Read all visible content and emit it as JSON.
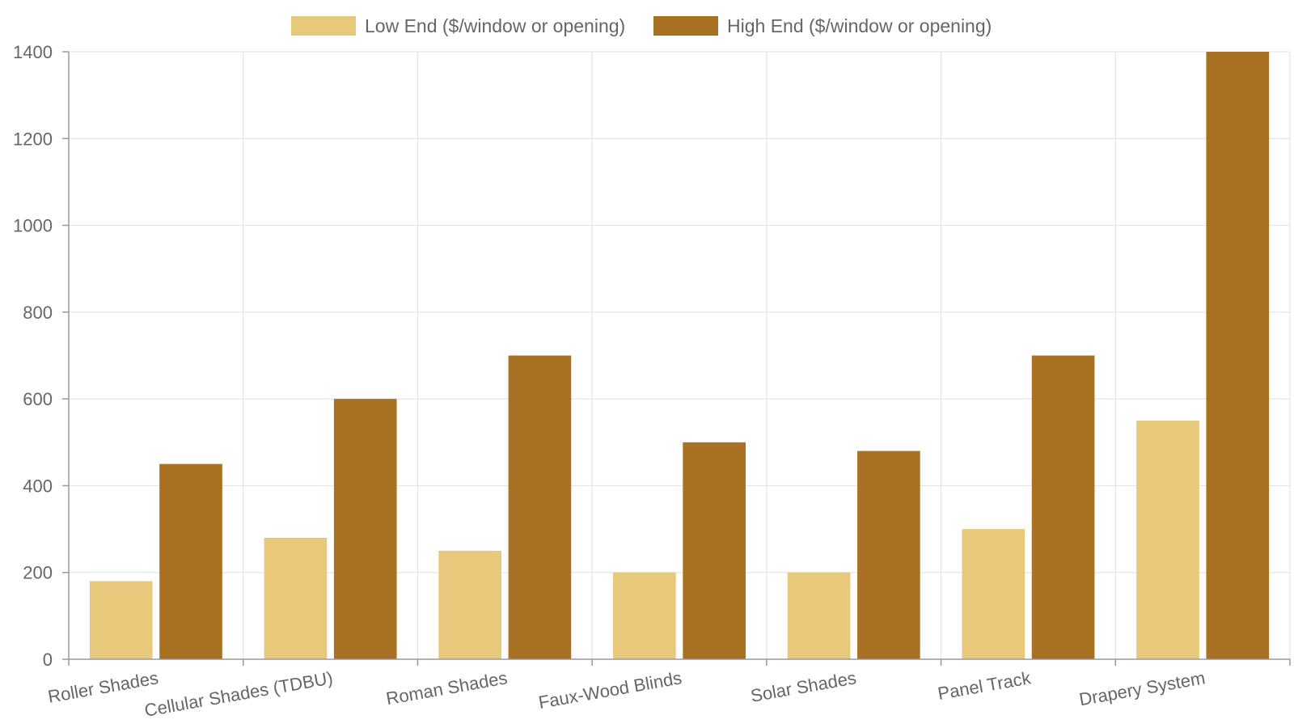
{
  "colors": {
    "low": "#E8C87A",
    "high": "#A97122",
    "grid": "#e0e0e0",
    "axis": "#9a9a9a",
    "text": "#666666"
  },
  "chart_data": {
    "type": "bar",
    "categories": [
      "Roller Shades",
      "Cellular Shades (TDBU)",
      "Roman Shades",
      "Faux-Wood Blinds",
      "Solar Shades",
      "Panel Track",
      "Drapery System"
    ],
    "series": [
      {
        "name": "Low End ($/window or opening)",
        "values": [
          180,
          280,
          250,
          200,
          200,
          300,
          550
        ]
      },
      {
        "name": "High End ($/window or opening)",
        "values": [
          450,
          600,
          700,
          500,
          480,
          700,
          1400
        ]
      }
    ],
    "y_ticks": [
      "0",
      "200",
      "400",
      "600",
      "800",
      "1000",
      "1200",
      "1400"
    ],
    "ylim": [
      0,
      1400
    ],
    "legend": "top-center",
    "grid": true
  }
}
